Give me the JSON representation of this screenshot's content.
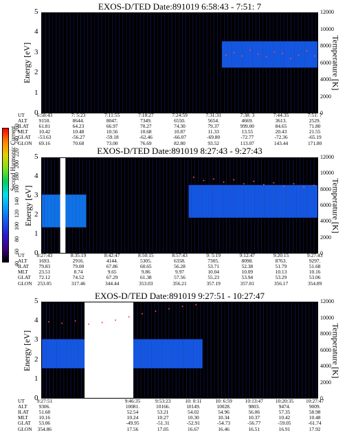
{
  "chart_data": [
    {
      "type": "heatmap",
      "title": "EXOS-D/TED   Date:891019  6:58:43 - 7:51: 7",
      "ylabel": "Energy [eV]",
      "ylabel_right": "Temperature [K]",
      "ylim": [
        0,
        5
      ],
      "ylim_right": [
        0,
        12000
      ],
      "y_ticks": [
        "0",
        "1",
        "2",
        "3",
        "4",
        "5"
      ],
      "y_ticks_right": [
        "0",
        "2000",
        "4000",
        "6000",
        "8000",
        "10000",
        "12000"
      ],
      "intensity_bands": [
        {
          "x_start": 0.0,
          "x_end": 1.0,
          "y_low": 0,
          "y_high": 5,
          "level": 20
        },
        {
          "x_start": 0.65,
          "x_end": 1.0,
          "y_low": 2.3,
          "y_high": 3.6,
          "level": 110
        }
      ],
      "temperature_points": {
        "x_start": 0.65,
        "x_end": 1.0,
        "temperature_K": [
          7000,
          7300,
          6900,
          7600,
          7100,
          6800,
          7400,
          7200,
          6600,
          7000,
          7500,
          6900
        ]
      },
      "orbit_table": {
        "row_labels": [
          "UT",
          "ALT",
          "ILAT",
          "MLT",
          "GLAT",
          "GLON"
        ],
        "columns": [
          [
            "6:58:43",
            "9150.",
            "61.81",
            "10.42",
            "-53.63",
            "69.16"
          ],
          [
            "7: 5:23",
            "8644.",
            "64.23",
            "10.48",
            "-56.27",
            "70.68"
          ],
          [
            "7:11:55",
            "8047.",
            "66.97",
            "10.56",
            "-59.18",
            "73.00"
          ],
          [
            "7:18:27",
            "7349.",
            "70.27",
            "10.68",
            "-62.46",
            "76.69"
          ],
          [
            "7:24:59",
            "6550.",
            "74.30",
            "10.87",
            "-66.07",
            "82.80"
          ],
          [
            "7:31:31",
            "5654.",
            "79.37",
            "11.33",
            "-69.80",
            "93.52"
          ],
          [
            "7:38: 3",
            "4669.",
            "999.00",
            "13.55",
            "-72.77",
            "113.07"
          ],
          [
            "7:44:35",
            "3613.",
            "84.65",
            "20.43",
            "-72.36",
            "143.44"
          ],
          [
            "7:51: 7",
            "2529.",
            "71.80",
            "21.55",
            "-65.19",
            "171.80"
          ]
        ]
      }
    },
    {
      "type": "heatmap",
      "title": "EXOS-D/TED   Date:891019  8:27:43 - 9:27:43",
      "ylabel": "Energy [eV]",
      "ylabel_right": "Temperature [K]",
      "ylim": [
        0,
        5
      ],
      "ylim_right": [
        0,
        12000
      ],
      "y_ticks": [
        "0",
        "1",
        "2",
        "3",
        "4",
        "5"
      ],
      "y_ticks_right": [
        "0",
        "2000",
        "4000",
        "6000",
        "8000",
        "10000",
        "12000"
      ],
      "data_gaps": [
        {
          "x_start": 0.066,
          "x_end": 0.085
        }
      ],
      "intensity_bands": [
        {
          "x_start": 0.0,
          "x_end": 1.0,
          "y_low": 0,
          "y_high": 5,
          "level": 20
        },
        {
          "x_start": 0.0,
          "x_end": 0.16,
          "y_low": 1.4,
          "y_high": 3.1,
          "level": 120
        },
        {
          "x_start": 0.53,
          "x_end": 1.0,
          "y_low": 1.9,
          "y_high": 3.6,
          "level": 110
        }
      ],
      "temperature_points": {
        "x_start": 0.53,
        "x_end": 1.0,
        "temperature_K": [
          9600,
          9200,
          9400,
          9000,
          9300,
          8800,
          9100,
          8700,
          8900,
          8500,
          8800,
          8400,
          8600
        ]
      },
      "orbit_table": {
        "row_labels": [
          "UT",
          "ALT",
          "ILAT",
          "MLT",
          "GLAT",
          "GLON"
        ],
        "columns": [
          [
            "8:27:43",
            "1693.",
            "79.83",
            "23.51",
            "72.12",
            "253.05"
          ],
          [
            "8:35:19",
            "2916.",
            "79.00",
            "8.74",
            "74.52",
            "317.46"
          ],
          [
            "8:42:47",
            "4144.",
            "67.86",
            "9.65",
            "67.29",
            "344.44"
          ],
          [
            "8:50:15",
            "5305.",
            "60.65",
            "9.86",
            "61.38",
            "353.03"
          ],
          [
            "8:57:43",
            "6358.",
            "56.28",
            "9.97",
            "57.56",
            "356.21"
          ],
          [
            "9: 5:19",
            "7305.",
            "53.71",
            "10.04",
            "55.23",
            "357.19"
          ],
          [
            "9:12:47",
            "8098.",
            "52.38",
            "10.09",
            "53.94",
            "357.01"
          ],
          [
            "9:20:15",
            "8763.",
            "51.79",
            "10.13",
            "53.29",
            "356.17"
          ],
          [
            "9:27:43",
            "9297.",
            "51.68",
            "10.16",
            "53.06",
            "354.89"
          ]
        ]
      }
    },
    {
      "type": "heatmap",
      "title": "EXOS-D/TED   Date:891019  9:27:51 - 10:27:47",
      "ylabel": "Energy [eV]",
      "ylabel_right": "Temperature [K]",
      "ylim": [
        0,
        5
      ],
      "ylim_right": [
        0,
        12000
      ],
      "y_ticks": [
        "0",
        "1",
        "2",
        "3",
        "4",
        "5"
      ],
      "y_ticks_right": [
        "0",
        "2000",
        "4000",
        "6000",
        "8000",
        "10000",
        "12000"
      ],
      "data_gaps": [
        {
          "x_start": 0.154,
          "x_end": 0.33
        }
      ],
      "intensity_bands": [
        {
          "x_start": 0.0,
          "x_end": 1.0,
          "y_low": 0,
          "y_high": 5,
          "level": 20
        },
        {
          "x_start": 0.0,
          "x_end": 0.154,
          "y_low": 1.6,
          "y_high": 3.1,
          "level": 110
        },
        {
          "x_start": 0.33,
          "x_end": 0.58,
          "y_low": 1.6,
          "y_high": 3.1,
          "level": 110
        }
      ],
      "temperature_points": {
        "x_start": 0.0,
        "x_end": 0.58,
        "temperature_K": [
          9600,
          9400,
          9700,
          9300,
          9500,
          9800,
          10200,
          10600,
          10900,
          11200,
          11500,
          11700
        ]
      },
      "orbit_table": {
        "row_labels": [
          "UT",
          "ALT",
          "ILAT",
          "MLT",
          "GLAT",
          "GLON"
        ],
        "columns": [
          [
            "9:27:51",
            "9306.",
            "51.68",
            "10.16",
            "53.06",
            "354.86"
          ],
          [
            "9:46:35",
            "10081.",
            "52.54",
            "10.24",
            "-49.95",
            "17.56"
          ],
          [
            "9:53:23",
            "10166.",
            "53.21",
            "10.27",
            "-51.31",
            "17.05"
          ],
          [
            "10: 0:11",
            "10149.",
            "54.02",
            "10.30",
            "-52.91",
            "16.67"
          ],
          [
            "10: 6:59",
            "10028.",
            "54.96",
            "10.34",
            "-54.73",
            "16.46"
          ],
          [
            "10:13:47",
            "9803.",
            "56.06",
            "10.37",
            "-56.77",
            "16.51"
          ],
          [
            "10:20:35",
            "9474.",
            "57.35",
            "10.42",
            "-59.05",
            "16.91"
          ],
          [
            "10:27:47",
            "9009.",
            "58.98",
            "10.48",
            "-61.74",
            "17.92"
          ]
        ]
      }
    }
  ],
  "colorbar": {
    "label": "Second Harmonic Current",
    "range": [
      40,
      260
    ],
    "ticks": [
      "40",
      "60",
      "80",
      "100",
      "120",
      "140",
      "160",
      "180",
      "200",
      "220",
      "240",
      "260"
    ]
  },
  "colors": {
    "background_level": "#2233dd",
    "gap": "#ffffff",
    "temperature_points": "#ff4444"
  }
}
